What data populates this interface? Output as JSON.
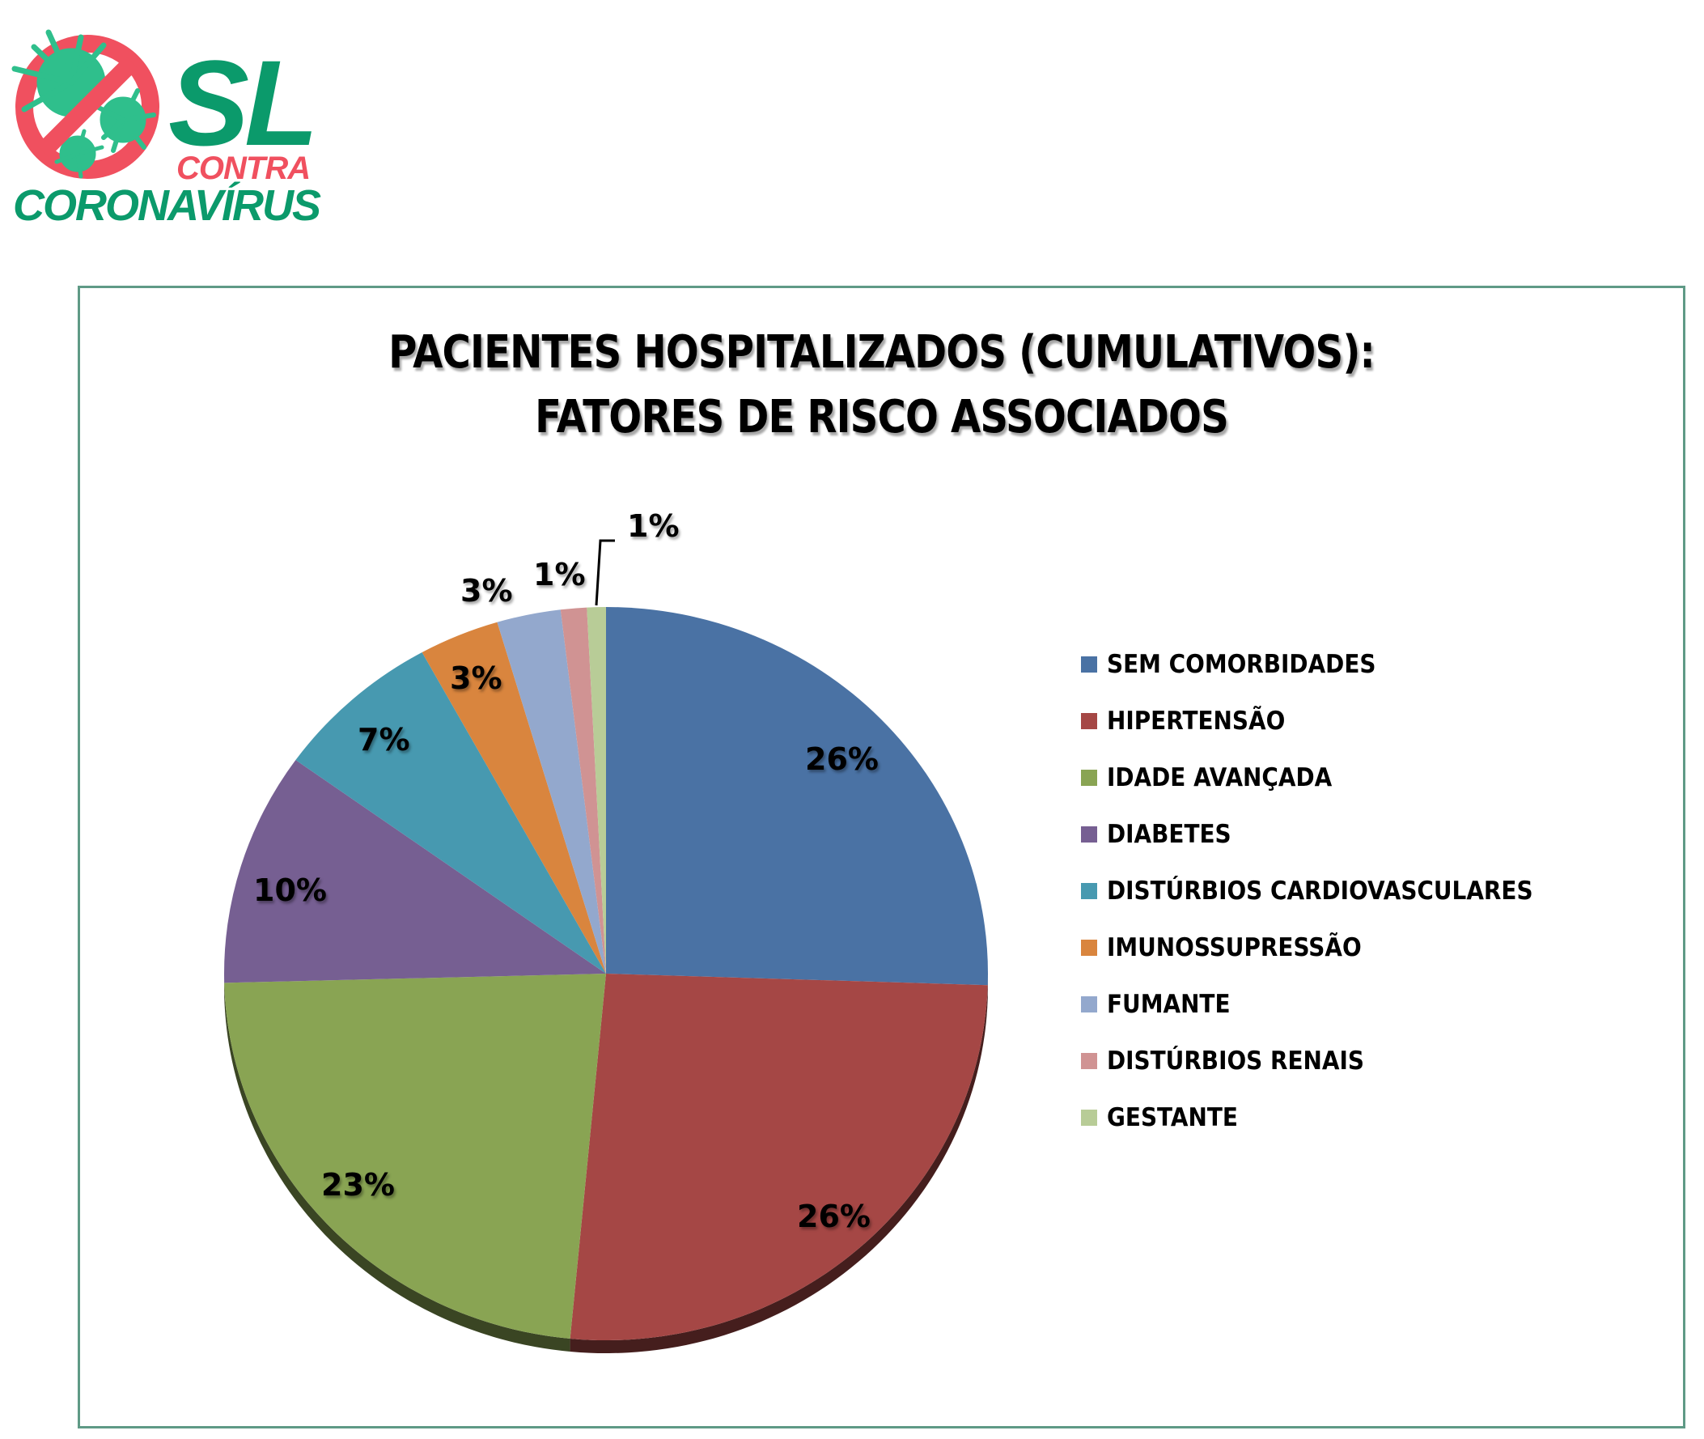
{
  "logo": {
    "line1": "SL",
    "line2": "CONTRA",
    "line3": "CORONAVÍRUS",
    "icon": "no-virus-prohibition-icon",
    "colors": {
      "green": "#0b9a6b",
      "red": "#f0505f",
      "virus": "#2fbf8c"
    }
  },
  "chart": {
    "title_line1": "PACIENTES HOSPITALIZADOS (CUMULATIVOS):",
    "title_line2": "FATORES DE RISCO ASSOCIADOS",
    "labels": {
      "sem_comorbidades": "26%",
      "hipertensao": "26%",
      "idade_avancada": "23%",
      "diabetes": "10%",
      "cardiovasculares": "7%",
      "imunossupressao": "3%",
      "fumante": "3%",
      "renais": "1%",
      "gestante": "1%"
    },
    "legend": [
      {
        "label": "SEM COMORBIDADES",
        "color": "#4a72a4"
      },
      {
        "label": "HIPERTENSÃO",
        "color": "#a54745"
      },
      {
        "label": "IDADE AVANÇADA",
        "color": "#89a453"
      },
      {
        "label": "DIABETES",
        "color": "#765f92"
      },
      {
        "label": "DISTÚRBIOS CARDIOVASCULARES",
        "color": "#4799b0"
      },
      {
        "label": "IMUNOSSUPRESSÃO",
        "color": "#d9853e"
      },
      {
        "label": "FUMANTE",
        "color": "#93a8cd"
      },
      {
        "label": "DISTÚRBIOS RENAIS",
        "color": "#d09393"
      },
      {
        "label": "GESTANTE",
        "color": "#b8cc97"
      }
    ]
  },
  "chart_data": {
    "type": "pie",
    "title": "PACIENTES HOSPITALIZADOS (CUMULATIVOS): FATORES DE RISCO ASSOCIADOS",
    "categories": [
      "SEM COMORBIDADES",
      "HIPERTENSÃO",
      "IDADE AVANÇADA",
      "DIABETES",
      "DISTÚRBIOS CARDIOVASCULARES",
      "IMUNOSSUPRESSÃO",
      "FUMANTE",
      "DISTÚRBIOS RENAIS",
      "GESTANTE"
    ],
    "values": [
      25.5,
      26.0,
      23.1,
      10.3,
      7.1,
      3.4,
      2.7,
      1.1,
      0.8
    ],
    "data_labels": [
      "26%",
      "26%",
      "23%",
      "10%",
      "7%",
      "3%",
      "3%",
      "1%",
      "1%"
    ],
    "colors": [
      "#4a72a4",
      "#a54745",
      "#89a453",
      "#765f92",
      "#4799b0",
      "#d9853e",
      "#93a8cd",
      "#d09393",
      "#b8cc97"
    ],
    "start_angle_deg": 0,
    "direction": "clockwise",
    "legend_position": "right",
    "style": "3d-tilted"
  }
}
